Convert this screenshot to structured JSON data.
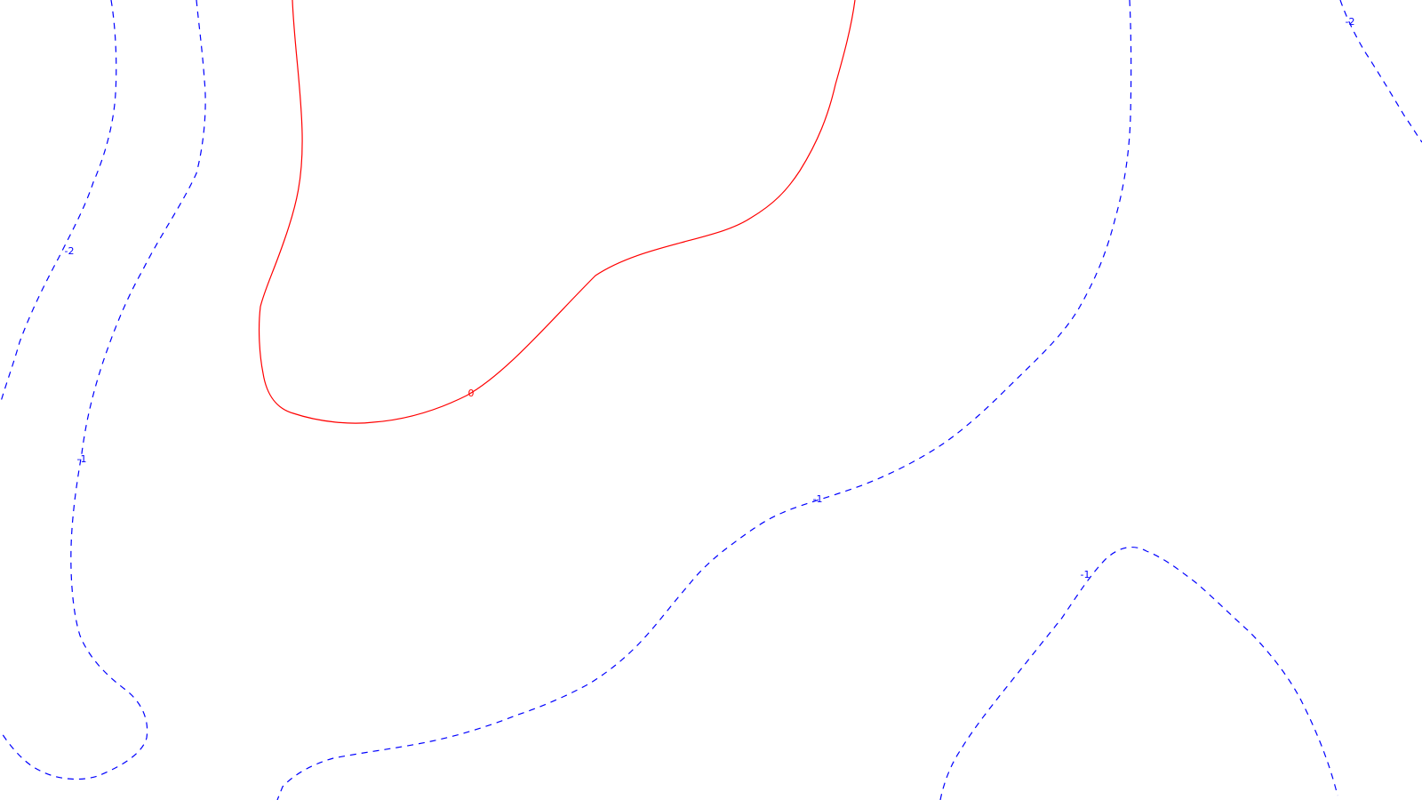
{
  "chart_data": {
    "type": "contour",
    "title": "",
    "xlabel": "",
    "ylabel": "",
    "grid": false,
    "legend": "none",
    "colors": {
      "zero": "#ff0000",
      "negative": "#0000ff",
      "background": "#ffffff"
    },
    "levels": [
      {
        "level": 0,
        "label": "0",
        "style": "solid",
        "color": "#ff0000"
      },
      {
        "level": -1,
        "label": "-1",
        "style": "dashed",
        "color": "#0000ff"
      },
      {
        "level": -2,
        "label": "-2",
        "style": "dashed",
        "color": "#0000ff"
      }
    ],
    "labels": {
      "zero": "0",
      "neg1": "-1",
      "neg2": "-2"
    }
  }
}
